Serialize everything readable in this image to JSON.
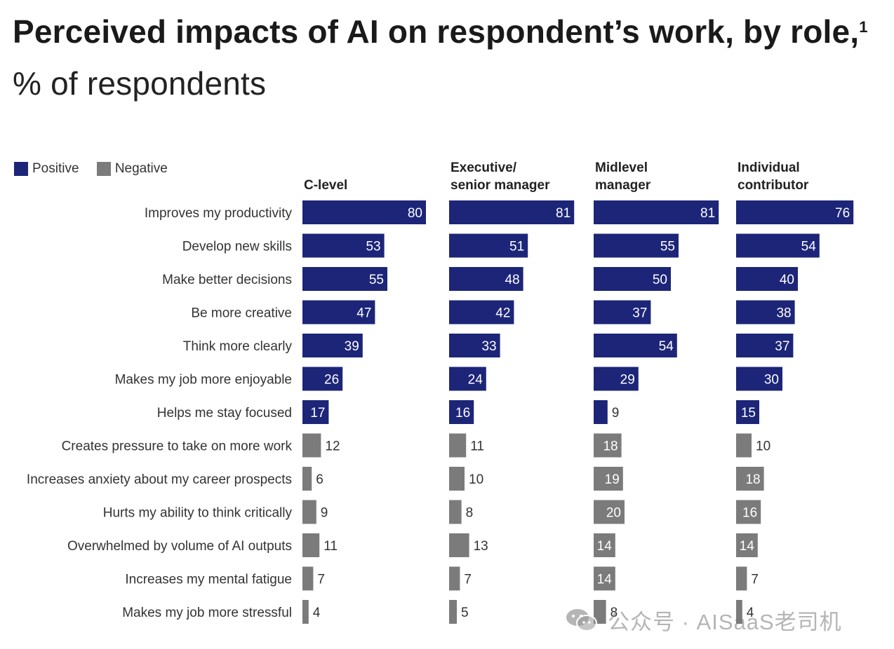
{
  "title": {
    "bold": "Perceived impacts of AI on respondent’s work, by role,",
    "footnote": "1",
    "light": " % of respondents"
  },
  "legend": {
    "positive": "Positive",
    "negative": "Negative"
  },
  "colors": {
    "positive": "#1c2578",
    "negative": "#7b7b7b"
  },
  "watermark": {
    "text": "公众号 · AISaaS老司机",
    "icon": "wechat-icon"
  },
  "chart_data": {
    "type": "bar",
    "orientation": "horizontal",
    "xlim": [
      0,
      100
    ],
    "categories": [
      "Improves my productivity",
      "Develop new skills",
      "Make better decisions",
      "Be more creative",
      "Think more clearly",
      "Makes my job more enjoyable",
      "Helps me stay focused",
      "Creates pressure to take on more work",
      "Increases anxiety about my career prospects",
      "Hurts my ability to think critically",
      "Overwhelmed by volume of AI outputs",
      "Increases my mental fatigue",
      "Makes my job more stressful"
    ],
    "sentiment": [
      "positive",
      "positive",
      "positive",
      "positive",
      "positive",
      "positive",
      "positive",
      "negative",
      "negative",
      "negative",
      "negative",
      "negative",
      "negative"
    ],
    "panels": [
      {
        "name": [
          "C-level"
        ],
        "values": [
          80,
          53,
          55,
          47,
          39,
          26,
          17,
          12,
          6,
          9,
          11,
          7,
          4
        ]
      },
      {
        "name": [
          "Executive/",
          "senior manager"
        ],
        "values": [
          81,
          51,
          48,
          42,
          33,
          24,
          16,
          11,
          10,
          8,
          13,
          7,
          5
        ]
      },
      {
        "name": [
          "Midlevel",
          "manager"
        ],
        "values": [
          81,
          55,
          50,
          37,
          54,
          29,
          9,
          18,
          19,
          20,
          14,
          14,
          8
        ]
      },
      {
        "name": [
          "Individual",
          "contributor"
        ],
        "values": [
          76,
          54,
          40,
          38,
          37,
          30,
          15,
          10,
          18,
          16,
          14,
          7,
          4
        ]
      }
    ]
  }
}
